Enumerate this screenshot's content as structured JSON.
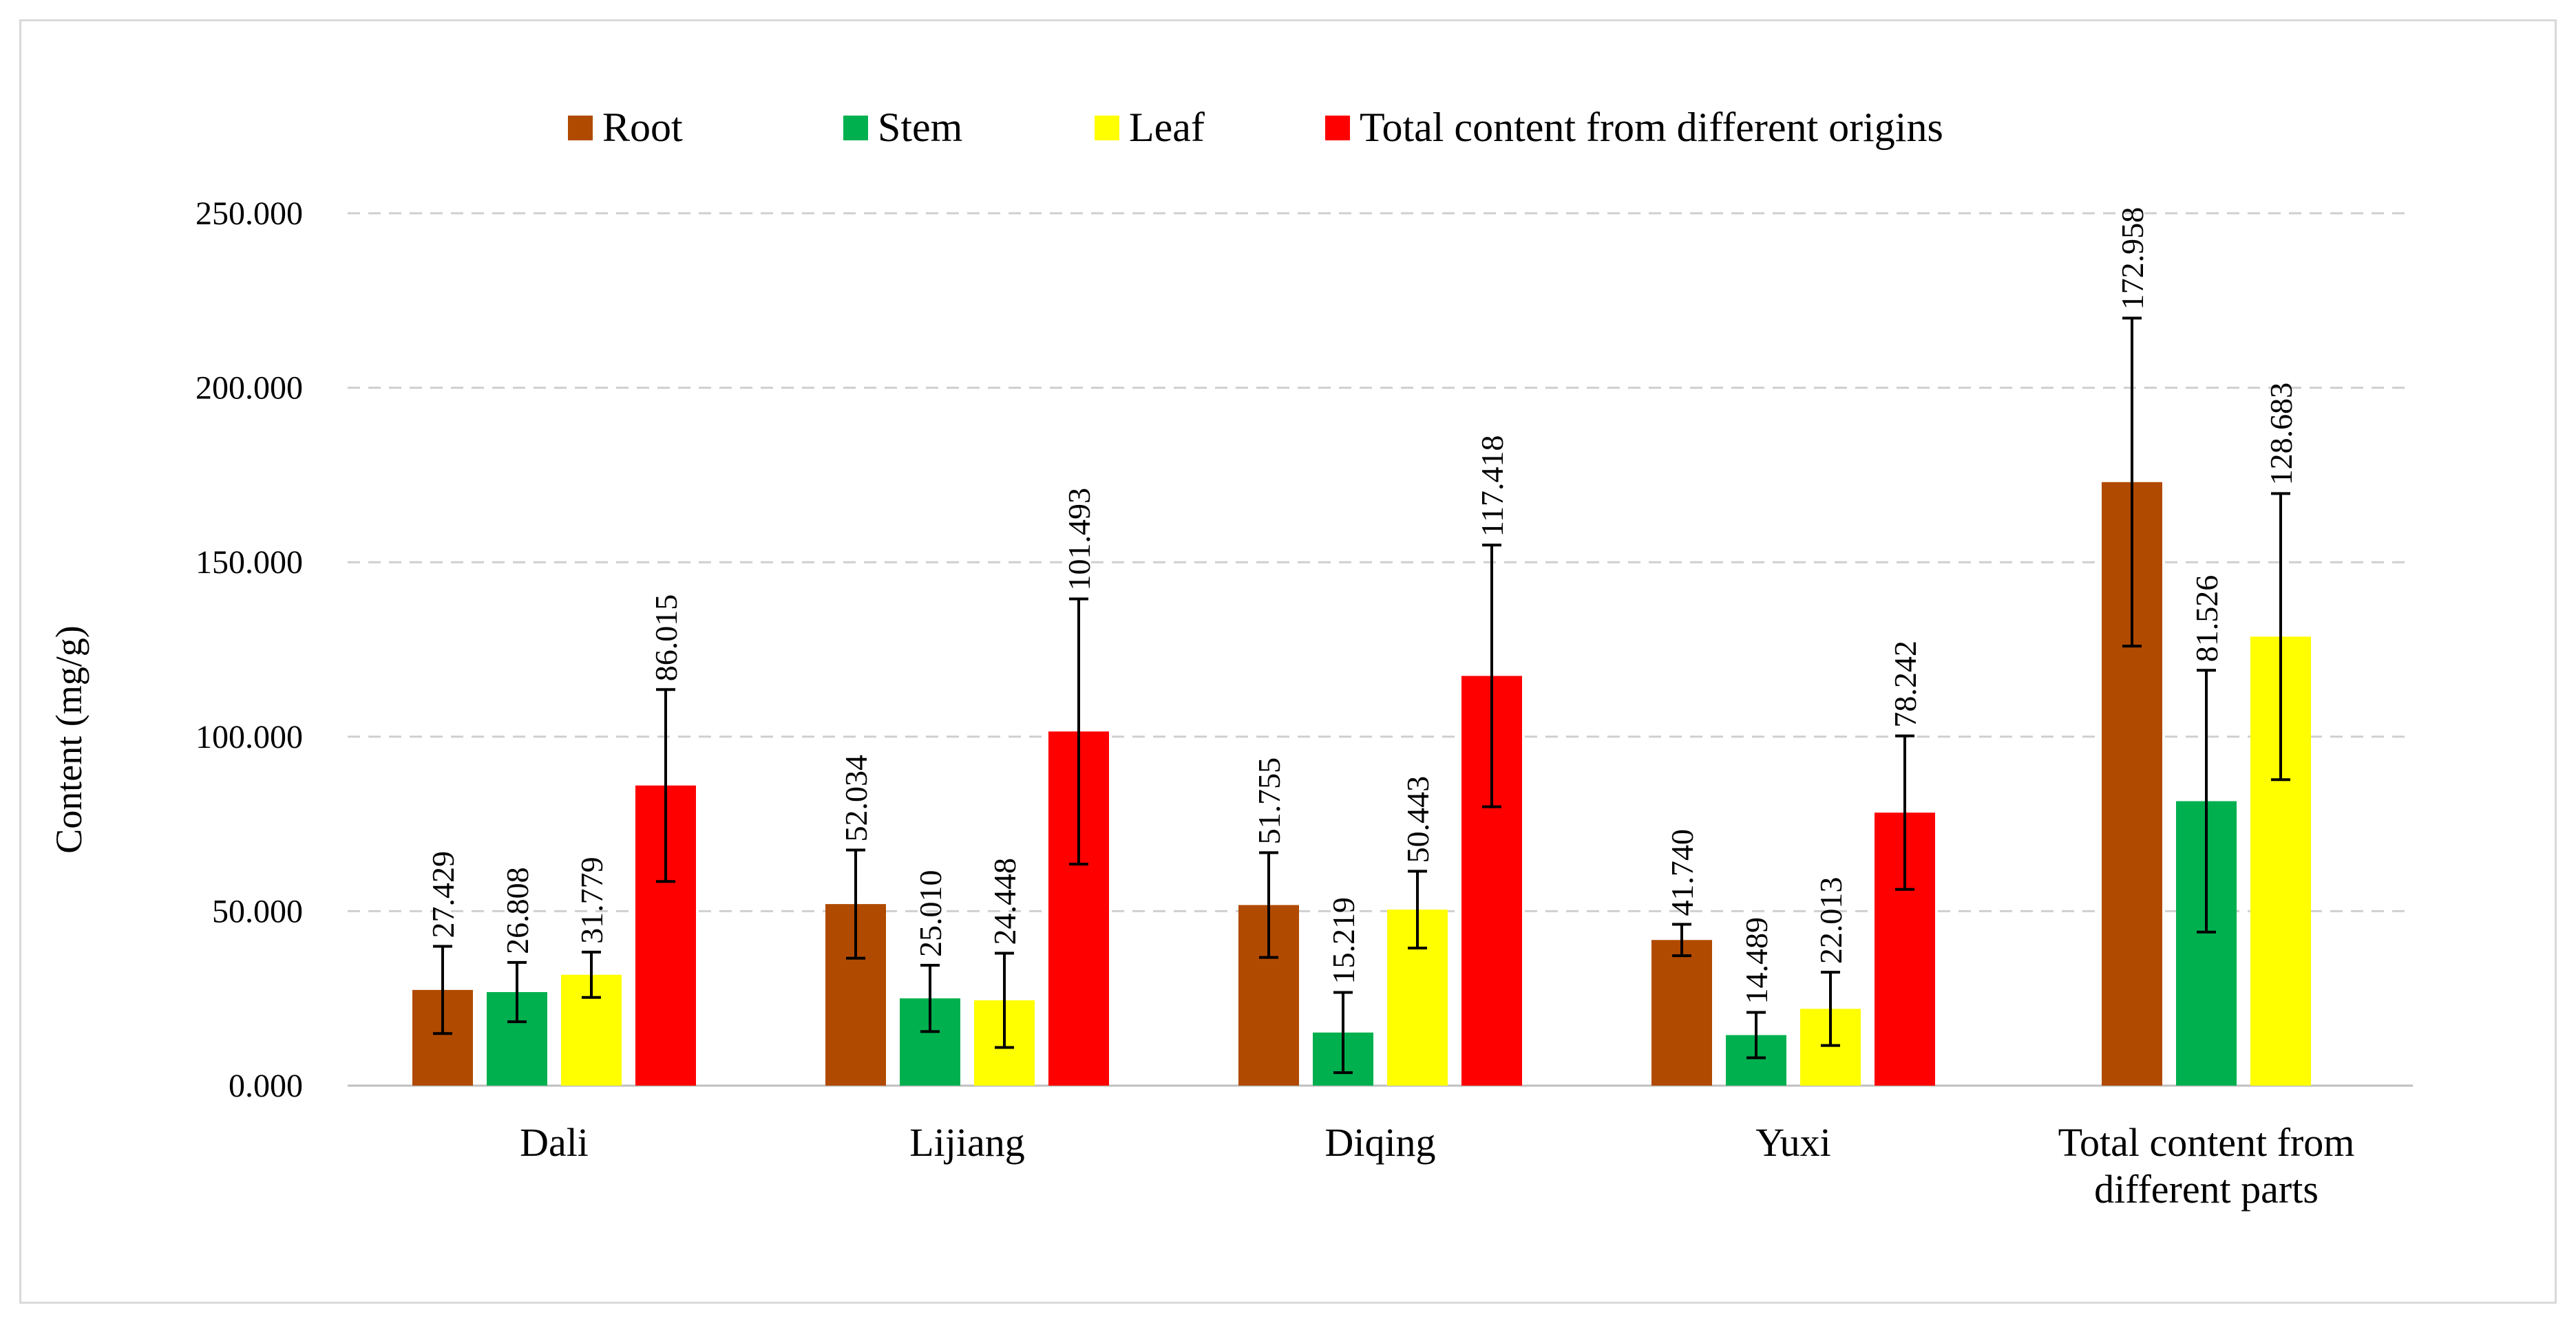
{
  "chart_data": {
    "type": "bar",
    "title": "",
    "xlabel": "",
    "ylabel": "Content  (mg/g)",
    "ylim": [
      0,
      250
    ],
    "yticks": [
      0,
      50,
      100,
      150,
      200,
      250
    ],
    "ytick_labels": [
      "0.000",
      "50.000",
      "100.000",
      "150.000",
      "200.000",
      "250.000"
    ],
    "grid": true,
    "legend_position": "top",
    "categories": [
      [
        "Dali"
      ],
      [
        "Lijiang"
      ],
      [
        "Diqing"
      ],
      [
        "Yuxi"
      ],
      [
        "Total content from",
        "different parts"
      ]
    ],
    "series": [
      {
        "name": "Root",
        "color": "#b04a00",
        "values": [
          27.429,
          52.034,
          51.755,
          41.74,
          172.958
        ],
        "labels": [
          "27.429",
          "52.034",
          "51.755",
          "41.740",
          "172.958"
        ],
        "errors": [
          12.5,
          15.5,
          15.0,
          4.5,
          47.0
        ]
      },
      {
        "name": "Stem",
        "color": "#00b04f",
        "values": [
          26.808,
          25.01,
          15.219,
          14.489,
          81.526
        ],
        "labels": [
          "26.808",
          "25.010",
          "15.219",
          "14.489",
          "81.526"
        ],
        "errors": [
          8.5,
          9.5,
          11.5,
          6.5,
          37.5
        ]
      },
      {
        "name": "Leaf",
        "color": "#ffff00",
        "values": [
          31.779,
          24.448,
          50.443,
          22.013,
          128.683
        ],
        "labels": [
          "31.779",
          "24.448",
          "50.443",
          "22.013",
          "128.683"
        ],
        "errors": [
          6.5,
          13.5,
          11.0,
          10.5,
          41.0
        ]
      },
      {
        "name": "Total content from different origins",
        "color": "#ff0000",
        "values": [
          86.015,
          101.493,
          117.418,
          78.242,
          null
        ],
        "labels": [
          "86.015",
          "101.493",
          "117.418",
          "78.242",
          null
        ],
        "errors": [
          27.5,
          38.0,
          37.5,
          22.0,
          null
        ]
      }
    ]
  }
}
